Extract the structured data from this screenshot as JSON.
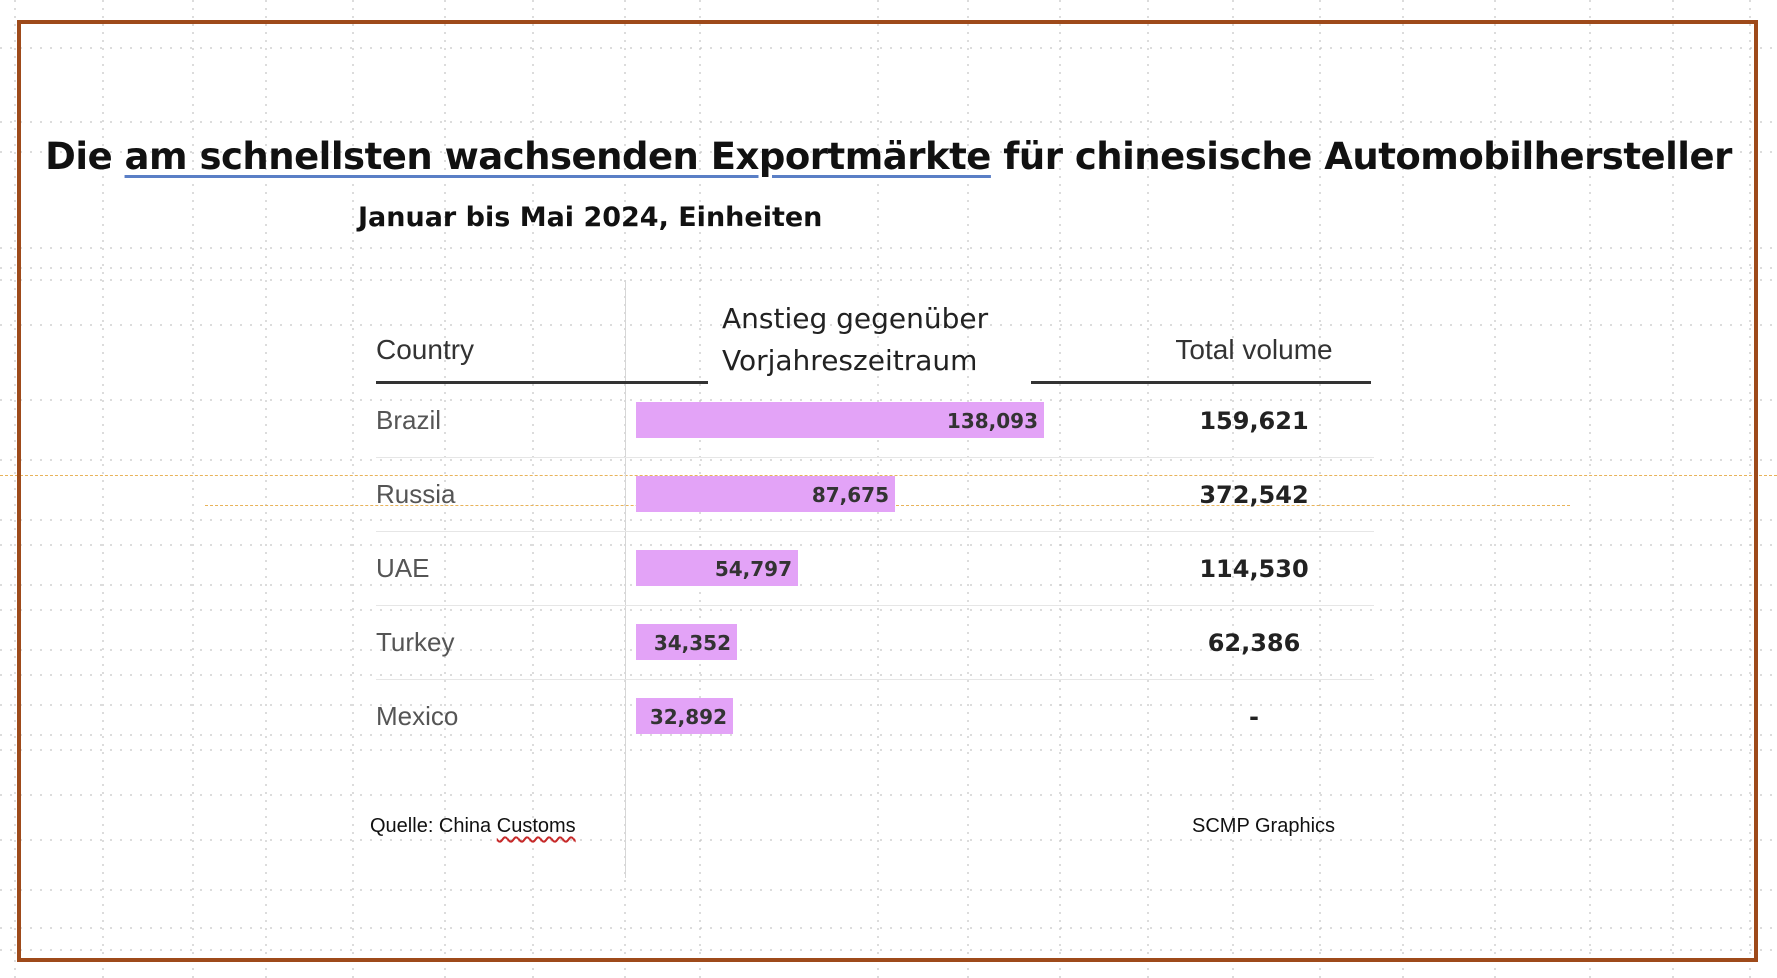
{
  "title_parts": {
    "a": "Die ",
    "b": "am schnellsten wachsenden Exportmärkte",
    "c": " für chinesische Automobilhersteller"
  },
  "subtitle": "Januar bis Mai 2024, Einheiten",
  "headers": {
    "country": "Country",
    "increase_line1": "Anstieg gegenüber",
    "increase_line2": "Vorjahreszeitraum",
    "total": "Total volume"
  },
  "rows": [
    {
      "country": "Brazil",
      "increase_label": "138,093",
      "total": "159,621"
    },
    {
      "country": "Russia",
      "increase_label": "87,675",
      "total": "372,542"
    },
    {
      "country": "UAE",
      "increase_label": "54,797",
      "total": "114,530"
    },
    {
      "country": "Turkey",
      "increase_label": "34,352",
      "total": "62,386"
    },
    {
      "country": "Mexico",
      "increase_label": "32,892",
      "total": "-"
    }
  ],
  "footer": {
    "source_prefix": "Quelle: China ",
    "source_underlined": "Customs",
    "credit": "SCMP Graphics"
  },
  "colors": {
    "bar": "#e3a3f7",
    "frame": "#9e4a1a"
  },
  "chart_data": {
    "type": "bar",
    "orientation": "horizontal",
    "title": "Die am schnellsten wachsenden Exportmärkte für chinesische Automobilhersteller",
    "subtitle": "Januar bis Mai 2024, Einheiten",
    "categories": [
      "Brazil",
      "Russia",
      "UAE",
      "Turkey",
      "Mexico"
    ],
    "series": [
      {
        "name": "Anstieg gegenüber Vorjahreszeitraum",
        "values": [
          138093,
          87675,
          54797,
          34352,
          32892
        ]
      }
    ],
    "table_columns": [
      "Country",
      "Anstieg gegenüber Vorjahreszeitraum",
      "Total volume"
    ],
    "total_volume": [
      159621,
      372542,
      114530,
      62386,
      null
    ],
    "xlim": [
      0,
      138093
    ],
    "source": "Quelle: China Customs",
    "credit": "SCMP Graphics"
  }
}
